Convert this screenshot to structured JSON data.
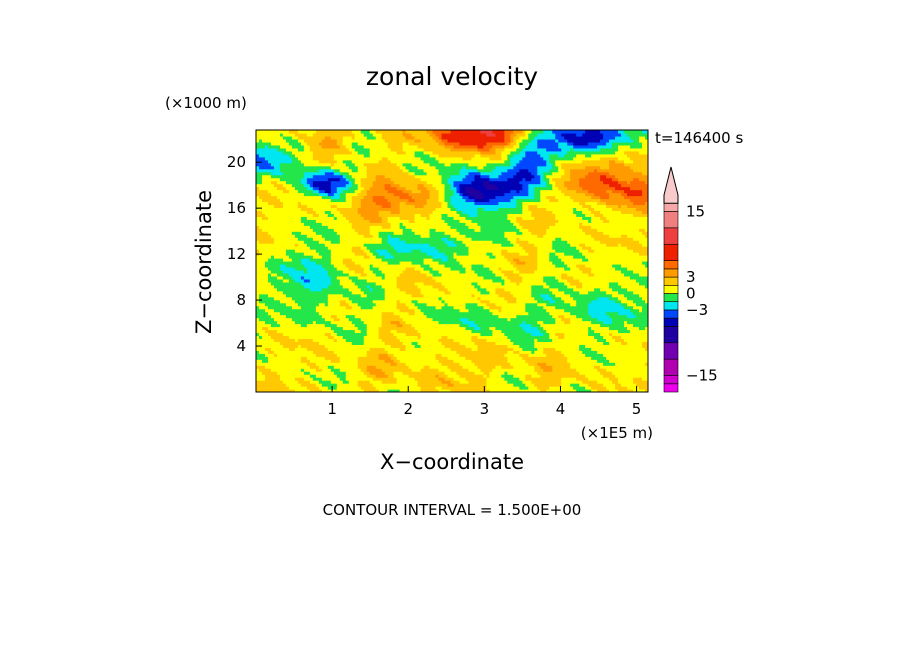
{
  "chart_data": {
    "type": "heatmap",
    "title": "zonal velocity",
    "xlabel": "X−coordinate",
    "ylabel": "Z−coordinate",
    "x_scale_note": "(×1E5 m)",
    "y_scale_note": "(×1000 m)",
    "time_label": "t=146400 s",
    "footer": "CONTOUR INTERVAL = 1.500E+00",
    "xlim": [
      0,
      5.15
    ],
    "ylim": [
      0,
      22.8
    ],
    "x_ticks": [
      "1",
      "2",
      "3",
      "4",
      "5"
    ],
    "y_ticks": [
      "4",
      "8",
      "12",
      "16",
      "20"
    ],
    "colorbar_ticks": [
      "15",
      "3",
      "0",
      "−3",
      "−15"
    ],
    "value_range": [
      -18,
      18
    ],
    "contour_interval": 1.5,
    "color_levels": [
      {
        "min": -18,
        "max": -16.5,
        "color": "#ee00ee"
      },
      {
        "min": -16.5,
        "max": -15,
        "color": "#d000d0"
      },
      {
        "min": -15,
        "max": -12,
        "color": "#b000b0"
      },
      {
        "min": -12,
        "max": -9,
        "color": "#7000b0"
      },
      {
        "min": -9,
        "max": -6,
        "color": "#2000a0"
      },
      {
        "min": -6,
        "max": -4.5,
        "color": "#0000b4"
      },
      {
        "min": -4.5,
        "max": -3,
        "color": "#0048ff"
      },
      {
        "min": -3,
        "max": -1.5,
        "color": "#00e6f0"
      },
      {
        "min": -1.5,
        "max": 0,
        "color": "#22e64a"
      },
      {
        "min": 0,
        "max": 1.5,
        "color": "#ffff00"
      },
      {
        "min": 1.5,
        "max": 3,
        "color": "#ffc800"
      },
      {
        "min": 3,
        "max": 4.5,
        "color": "#ff9a00"
      },
      {
        "min": 4.5,
        "max": 6,
        "color": "#ff6a00"
      },
      {
        "min": 6,
        "max": 9,
        "color": "#ee2000"
      },
      {
        "min": 9,
        "max": 12,
        "color": "#ee4040"
      },
      {
        "min": 12,
        "max": 15,
        "color": "#f08080"
      },
      {
        "min": 15,
        "max": 16.5,
        "color": "#f4a8a8"
      },
      {
        "min": 16.5,
        "max": 18,
        "color": "#f8caca"
      }
    ]
  }
}
